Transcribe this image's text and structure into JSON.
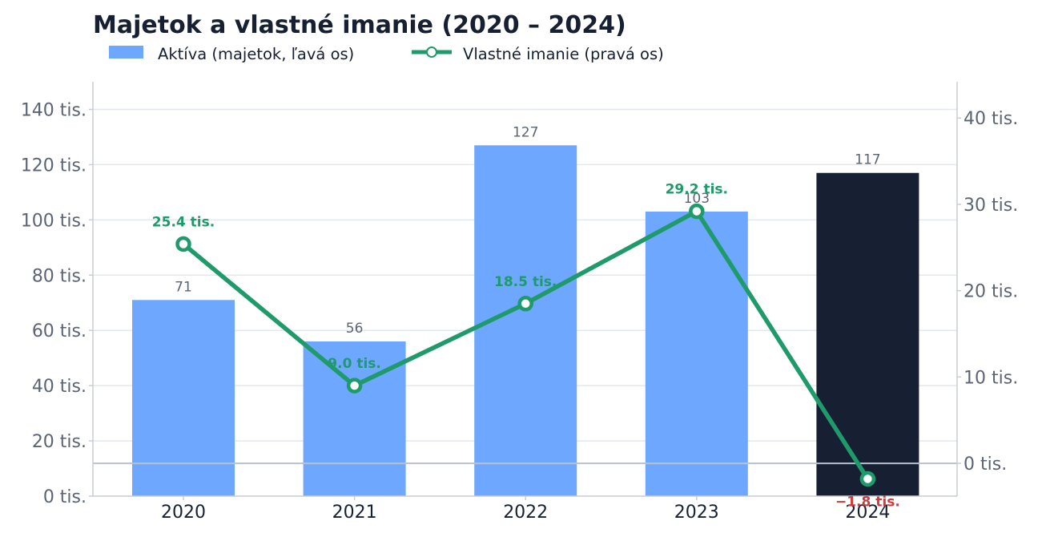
{
  "chart_data": {
    "type": "bar",
    "title": "Majetok a vlastné imanie (2020 – 2024)",
    "categories": [
      "2020",
      "2021",
      "2022",
      "2023",
      "2024"
    ],
    "series": [
      {
        "name": "Aktíva (majetok, ľavá os)",
        "type": "bar",
        "axis": "left",
        "values": [
          71,
          56,
          127,
          103,
          117
        ],
        "value_labels": [
          "71",
          "56",
          "127",
          "103",
          "117"
        ],
        "color": "#6ea8fe",
        "highlight_color": "#162032",
        "highlight_index": 4
      },
      {
        "name": "Vlastné imanie (pravá os)",
        "type": "line",
        "axis": "right",
        "values": [
          25.4,
          9.0,
          18.5,
          29.2,
          -1.8
        ],
        "value_labels": [
          "25.4 tis.",
          "9.0 tis.",
          "18.5 tis.",
          "29.2 tis.",
          "−1.8 tis."
        ],
        "color": "#1f9a6a",
        "negative_label_color": "#d03b3b"
      }
    ],
    "y_left": {
      "ylim": [
        0,
        150
      ],
      "ticks": [
        0,
        20,
        40,
        60,
        80,
        100,
        120,
        140
      ],
      "tick_labels": [
        "0 tis.",
        "20 tis.",
        "40 tis.",
        "60 tis.",
        "80 tis.",
        "100 tis.",
        "120 tis.",
        "140 tis."
      ]
    },
    "y_right": {
      "ylim": [
        -3.8,
        44.2
      ],
      "ticks": [
        0,
        10,
        20,
        30,
        40
      ],
      "tick_labels": [
        "0 tis.",
        "10 tis.",
        "20 tis.",
        "30 tis.",
        "40 tis."
      ]
    },
    "grid": true,
    "zero_line_right_axis": true,
    "legend_position": "top-left"
  }
}
